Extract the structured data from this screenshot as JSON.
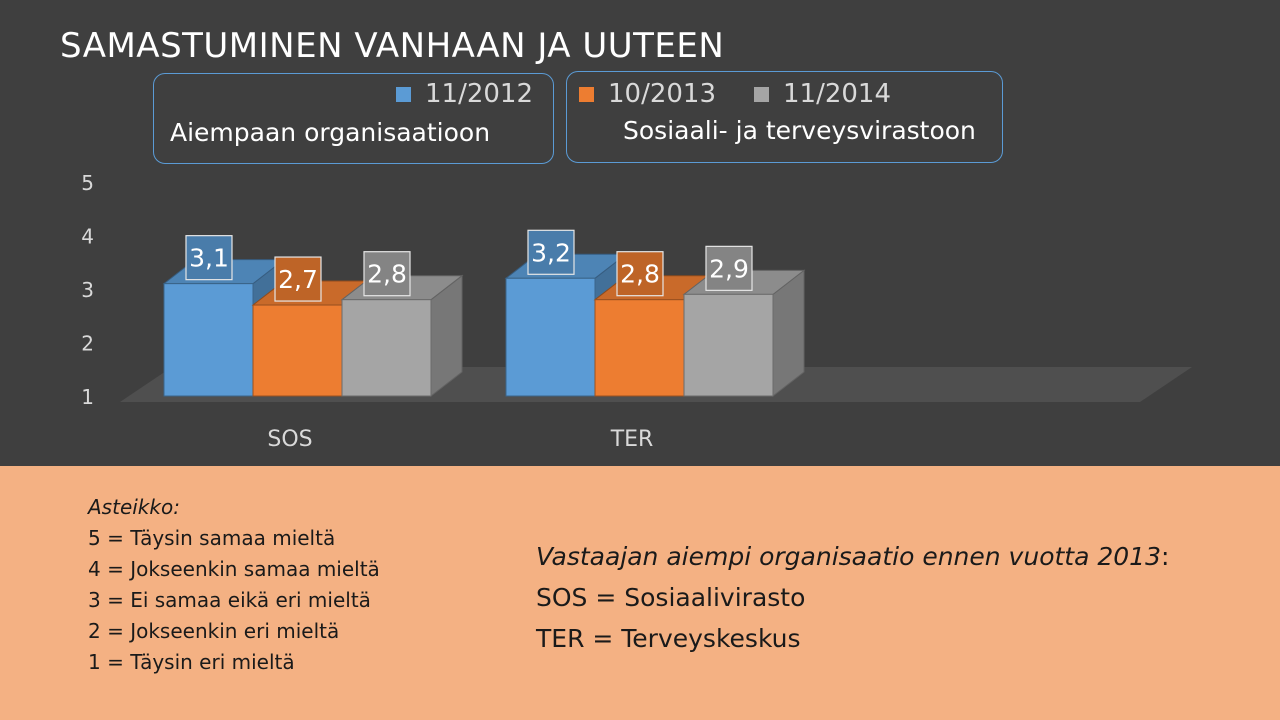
{
  "title": "SAMASTUMINEN VANHAAN JA UUTEEN",
  "legend": {
    "group_left": "Aiempaan organisaatioon",
    "group_right": "Sosiaali- ja terveysvirastoon"
  },
  "chart_data": {
    "type": "bar",
    "title": "SAMASTUMINEN VANHAAN JA UUTEEN",
    "categories": [
      "SOS",
      "TER"
    ],
    "series": [
      {
        "name": "11/2012",
        "values": [
          3.1,
          3.2
        ],
        "labels": [
          "3,1",
          "3,2"
        ],
        "color": "#5b9bd5"
      },
      {
        "name": "10/2013",
        "values": [
          2.7,
          2.8
        ],
        "labels": [
          "2,7",
          "2,8"
        ],
        "color": "#ed7d31"
      },
      {
        "name": "11/2014",
        "values": [
          2.8,
          2.9
        ],
        "labels": [
          "2,8",
          "2,9"
        ],
        "color": "#a5a5a5"
      }
    ],
    "yticks": [
      "1",
      "2",
      "3",
      "4",
      "5"
    ],
    "ylim": [
      1,
      5
    ],
    "xlabel": "",
    "ylabel": "",
    "grid": false,
    "legend_position": "top",
    "three_d": true
  },
  "scale": {
    "heading": "Asteikko:",
    "items": [
      "5 = Täysin samaa mieltä",
      "4 = Jokseenkin samaa mieltä",
      "3 = Ei samaa eikä eri mieltä",
      "2 = Jokseenkin eri mieltä",
      "1 = Täysin eri mieltä"
    ]
  },
  "note": {
    "heading_italic": "Vastaajan aiempi organisaatio ennen vuotta 2013",
    "heading_suffix": ":",
    "lines": [
      "SOS = Sosiaalivirasto",
      "TER = Terveyskeskus"
    ]
  },
  "colors": {
    "background_top": "#3f3f3f",
    "background_bottom": "#f4b183",
    "accent_border": "#5b9bd5"
  }
}
